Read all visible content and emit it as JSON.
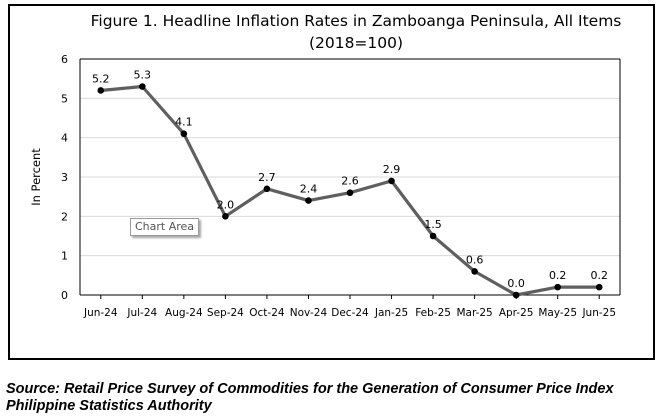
{
  "chart_data": {
    "type": "line",
    "title_line1": "Figure 1. Headline Inflation Rates in Zamboanga Peninsula, All Items",
    "title_line2": "(2018=100)",
    "ylabel": "In Percent",
    "xlabel": "",
    "ylim": [
      0,
      6
    ],
    "yticks": [
      "0",
      "1",
      "2",
      "3",
      "4",
      "5",
      "6"
    ],
    "grid": true,
    "categories": [
      "Jun-24",
      "Jul-24",
      "Aug-24",
      "Sep-24",
      "Oct-24",
      "Nov-24",
      "Dec-24",
      "Jan-25",
      "Feb-25",
      "Mar-25",
      "Apr-25",
      "May-25",
      "Jun-25"
    ],
    "values": [
      5.2,
      5.3,
      4.1,
      2.0,
      2.7,
      2.4,
      2.6,
      2.9,
      1.5,
      0.6,
      0.0,
      0.2,
      0.2
    ],
    "labels": [
      "5.2",
      "5.3",
      "4.1",
      "2.0",
      "2.7",
      "2.4",
      "2.6",
      "2.9",
      "1.5",
      "0.6",
      "0.0",
      "0.2",
      "0.2"
    ],
    "line_color": "#5f5f5f",
    "marker_color": "#000000"
  },
  "tooltip": {
    "text": "Chart Area"
  },
  "source": {
    "line1": "Source: Retail Price Survey of Commodities for the Generation of Consumer Price Index",
    "line2": "Philippine Statistics Authority"
  }
}
